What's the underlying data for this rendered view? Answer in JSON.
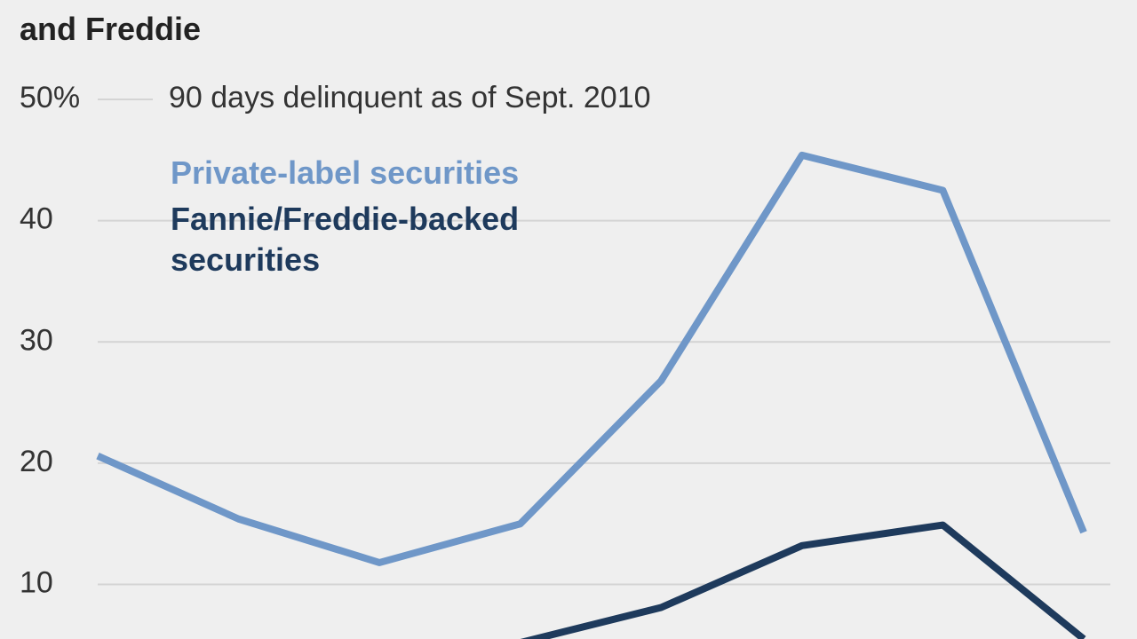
{
  "chart_data": {
    "type": "line",
    "title": "and Freddie",
    "annotation": "90 days delinquent as of Sept. 2010",
    "categories": [
      null,
      null,
      null,
      null,
      null,
      null,
      null,
      null
    ],
    "series": [
      {
        "name": "Private-label securities",
        "color": "#6f97c8",
        "values": [
          20.6,
          15.4,
          11.8,
          15.0,
          26.8,
          45.4,
          42.5,
          14.3
        ]
      },
      {
        "name": "Fannie/Freddie-backed securities",
        "color": "#1e3a5c",
        "values": [
          null,
          null,
          null,
          5.2,
          8.1,
          13.2,
          14.9,
          5.5
        ]
      }
    ],
    "ylim": [
      5.5,
      58.2
    ],
    "yticks": [
      10,
      20,
      30,
      40,
      {
        "value": 50,
        "label": "50%"
      }
    ],
    "grid": true
  }
}
